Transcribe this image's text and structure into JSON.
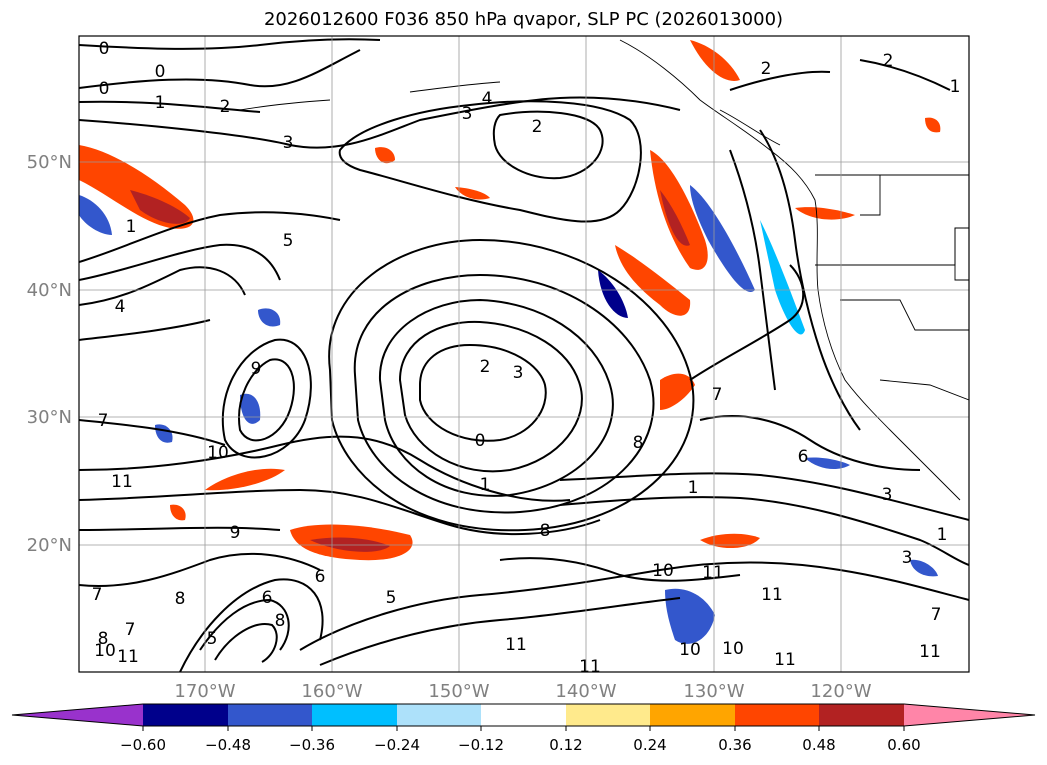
{
  "title": "2026012600 F036 850 hPa qvapor, SLP PC (2026013000)",
  "map": {
    "lat_labels": [
      "50°N",
      "40°N",
      "30°N",
      "20°N"
    ],
    "lon_labels": [
      "170°W",
      "160°W",
      "150°W",
      "140°W",
      "130°W",
      "120°W"
    ],
    "grid": true
  },
  "colorbar": {
    "colors": [
      "#9932CC",
      "#00008B",
      "#3357CC",
      "#00BFFF",
      "#ADE1FA",
      "#FFFFFF",
      "#FFEA8C",
      "#FFA500",
      "#FF4500",
      "#B22222",
      "#FF85A8"
    ],
    "tick_labels": [
      "−0.60",
      "−0.48",
      "−0.36",
      "−0.24",
      "−0.12",
      "0.12",
      "0.24",
      "0.36",
      "0.48",
      "0.60"
    ]
  },
  "contour_labels": [
    "0",
    "0",
    "0",
    "1",
    "2",
    "3",
    "3",
    "4",
    "2",
    "2",
    "2",
    "1",
    "3",
    "1",
    "5",
    "4",
    "2",
    "3",
    "0",
    "1",
    "7",
    "11",
    "9",
    "9",
    "10",
    "6",
    "7",
    "8",
    "7",
    "8",
    "5",
    "6",
    "8",
    "5",
    "11",
    "10",
    "11",
    "11",
    "10",
    "11",
    "7",
    "1",
    "3",
    "6",
    "8",
    "8",
    "7",
    "1",
    "11",
    "10",
    "11",
    "11",
    "10"
  ]
}
